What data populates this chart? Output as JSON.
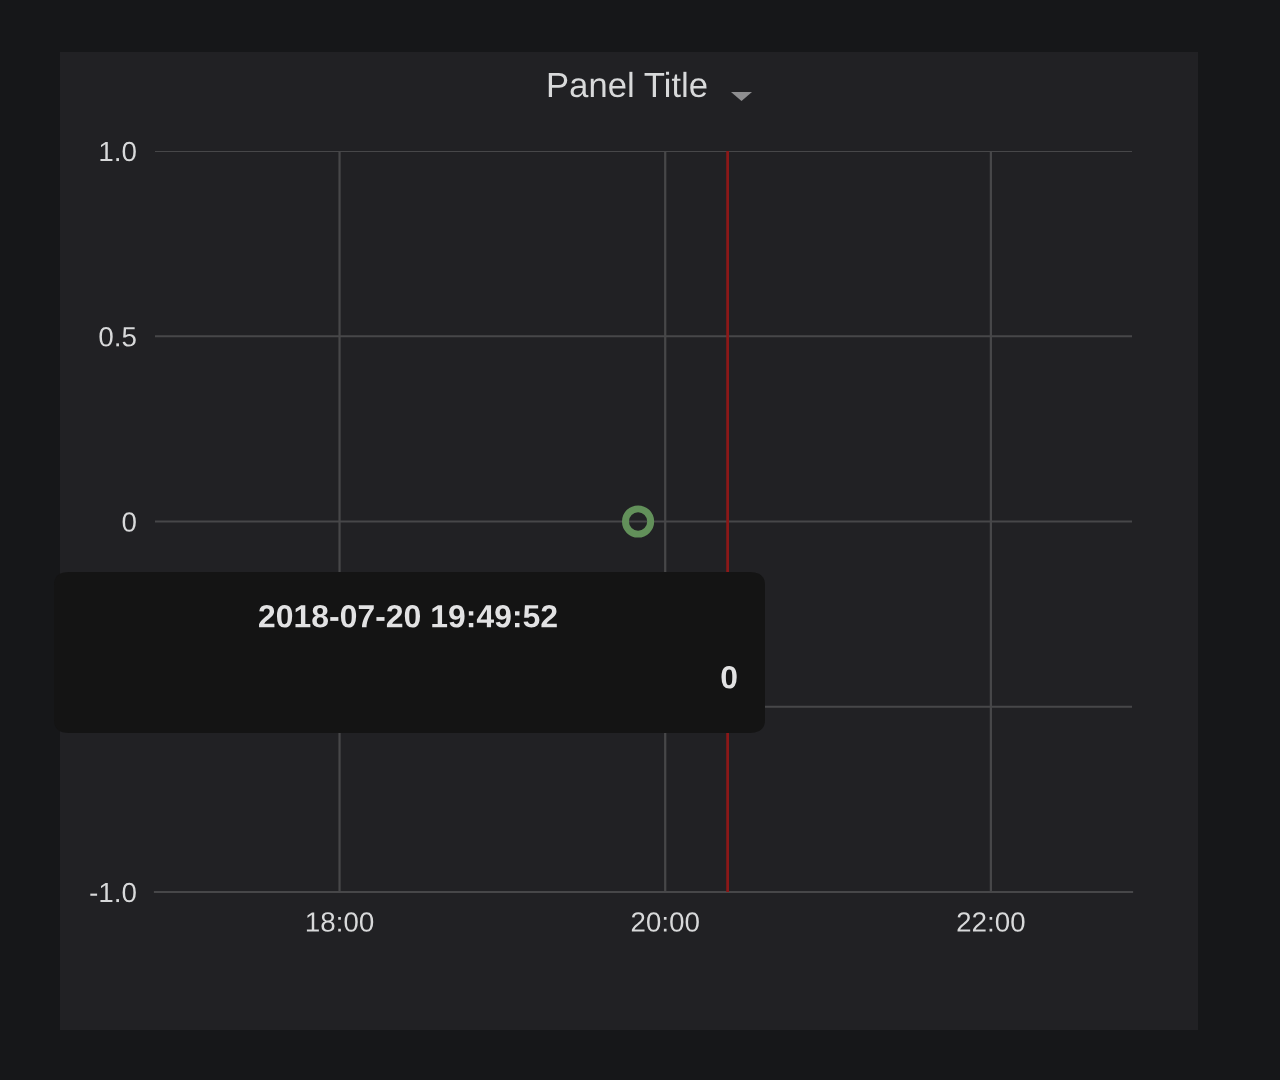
{
  "chart_data": {
    "type": "scatter",
    "title": "Panel Title",
    "x": [
      "2018-07-20T19:50"
    ],
    "series": [
      {
        "color": "#62905a",
        "values": [
          0
        ]
      }
    ],
    "marker": "circle",
    "xlim": [
      "2018-07-20T16:52",
      "2018-07-20T22:52"
    ],
    "xticks": [
      {
        "value": "2018-07-20T18:00",
        "label": "18:00"
      },
      {
        "value": "2018-07-20T20:00",
        "label": "20:00"
      },
      {
        "value": "2018-07-20T22:00",
        "label": "22:00"
      }
    ],
    "ylim": [
      -1,
      1
    ],
    "yticks": [
      {
        "value": -1,
        "label": "-1.0"
      },
      {
        "value": -0.5,
        "label": null
      },
      0,
      {
        "value": 0.5,
        "label": "0.5"
      },
      {
        "value": 1,
        "label": "1.0"
      }
    ],
    "grid": true,
    "ref_lines": [
      {
        "axis": "x",
        "value": "2018-07-20T20:23",
        "color": "#8b1818"
      }
    ],
    "annotations": [
      "2018-07-20 19:49:52",
      "0"
    ]
  }
}
